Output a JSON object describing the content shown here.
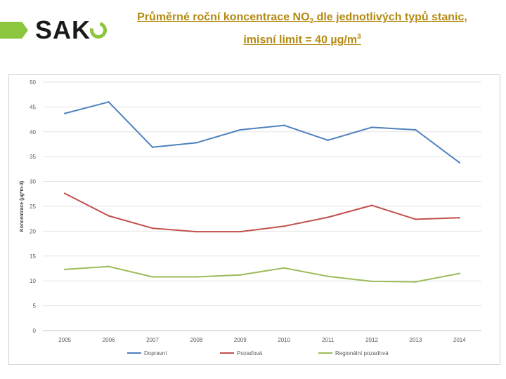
{
  "brand": {
    "name": "SAK",
    "bar_color": "#8cc63f"
  },
  "slide": {
    "title_line1_pre": "Průměrné roční koncentrace NO",
    "title_line1_sub": "2",
    "title_line1_post": " dle jednotlivých typů stanic,",
    "title_line2_pre": "imisní limit = 40 µg/m",
    "title_line2_sup": "3"
  },
  "chart_data": {
    "type": "line",
    "title": "",
    "xlabel": "",
    "ylabel": "Koncentrace (µg*m-3)",
    "x": [
      "2005",
      "2006",
      "2007",
      "2008",
      "2009",
      "2010",
      "2011",
      "2012",
      "2013",
      "2014"
    ],
    "ylim": [
      0,
      50
    ],
    "yticks": [
      "0",
      "5",
      "10",
      "15",
      "20",
      "25",
      "30",
      "35",
      "40",
      "45",
      "50"
    ],
    "grid": true,
    "legend_position": "bottom",
    "series": [
      {
        "name": "Dopravní",
        "color": "#4f81bd",
        "values": [
          43.7,
          46.0,
          36.9,
          37.8,
          40.4,
          41.3,
          38.3,
          40.9,
          40.4,
          33.8
        ]
      },
      {
        "name": "Pozaďová",
        "color": "#c0504d",
        "values": [
          27.6,
          23.1,
          20.6,
          19.9,
          19.9,
          21.0,
          22.8,
          25.2,
          22.4,
          22.7
        ]
      },
      {
        "name": "Regionální pozaďová",
        "color": "#9bbb59",
        "values": [
          12.3,
          12.9,
          10.8,
          10.8,
          11.2,
          12.6,
          10.9,
          9.9,
          9.8,
          11.5
        ]
      }
    ]
  }
}
